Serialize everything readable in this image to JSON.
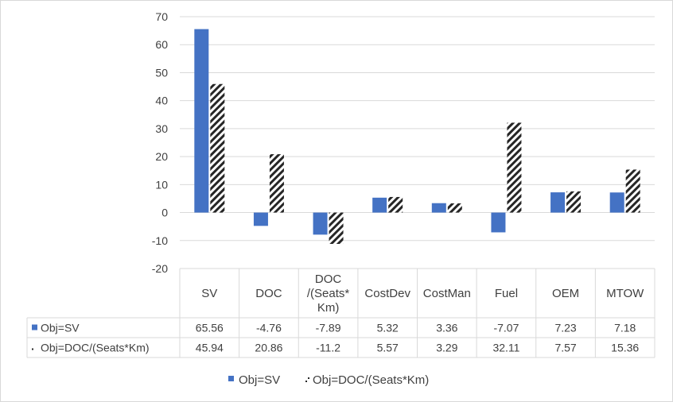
{
  "chart_data": {
    "type": "bar",
    "categories": [
      "SV",
      "DOC",
      "/(Seats*Km)",
      "CostDev",
      "CostMan",
      "Fuel",
      "OEM",
      "MTOW"
    ],
    "category_lines": [
      [
        "SV"
      ],
      [
        "DOC"
      ],
      [
        "DOC",
        "/(Seats*",
        "Km)"
      ],
      [
        "CostDev"
      ],
      [
        "CostMan"
      ],
      [
        "Fuel"
      ],
      [
        "OEM"
      ],
      [
        "MTOW"
      ]
    ],
    "series": [
      {
        "name": "Obj=SV",
        "values": [
          65.56,
          -4.76,
          -7.89,
          5.32,
          3.36,
          -7.07,
          7.23,
          7.18
        ],
        "labels": [
          "65.56",
          "-4.76",
          "-7.89",
          "5.32",
          "3.36",
          "-7.07",
          "7.23",
          "7.18"
        ],
        "color": "#4472c4",
        "pattern": "solid"
      },
      {
        "name": "Obj=DOC/(Seats*Km)",
        "values": [
          45.94,
          20.86,
          -11.2,
          5.57,
          3.29,
          32.11,
          7.57,
          15.36
        ],
        "labels": [
          "45.94",
          "20.86",
          "-11.2",
          "5.57",
          "3.29",
          "32.11",
          "7.57",
          "15.36"
        ],
        "color": "#262626",
        "pattern": "diagonal-stripes"
      }
    ],
    "ylim": [
      -20,
      70
    ],
    "yticks": [
      "70",
      "60",
      "50",
      "40",
      "30",
      "20",
      "10",
      "0",
      "-10",
      "-20"
    ],
    "grid": true,
    "legend": "bottom",
    "data_table": true,
    "title": "",
    "xlabel": "",
    "ylabel": ""
  }
}
